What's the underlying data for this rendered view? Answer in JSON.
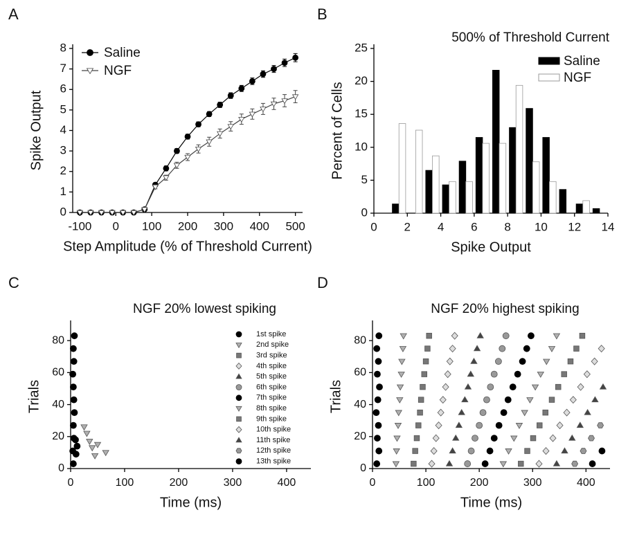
{
  "chart_data": [
    {
      "panel": "A",
      "type": "line",
      "xlabel": "Step Amplitude (% of Threshold Current)",
      "ylabel": "Spike Output",
      "x": [
        -100,
        -70,
        -40,
        -10,
        20,
        50,
        80,
        110,
        140,
        170,
        200,
        230,
        260,
        290,
        320,
        350,
        380,
        410,
        440,
        470,
        500
      ],
      "xlim": [
        -120,
        520
      ],
      "xticks": [
        -100,
        0,
        100,
        200,
        300,
        400,
        500
      ],
      "ylim": [
        0,
        8
      ],
      "yticks": [
        0,
        1,
        2,
        3,
        4,
        5,
        6,
        7,
        8
      ],
      "legend": "upper left",
      "series": [
        {
          "name": "Saline",
          "color": "#000000",
          "fill": "#000000",
          "marker": "circle",
          "values": [
            0,
            0,
            0,
            0,
            0,
            0,
            0.15,
            1.35,
            2.15,
            3.0,
            3.7,
            4.3,
            4.8,
            5.25,
            5.7,
            6.05,
            6.4,
            6.75,
            7.0,
            7.3,
            7.55
          ],
          "errors": [
            0.02,
            0.02,
            0.02,
            0.02,
            0.02,
            0.02,
            0.05,
            0.1,
            0.12,
            0.12,
            0.12,
            0.12,
            0.12,
            0.13,
            0.14,
            0.15,
            0.16,
            0.16,
            0.17,
            0.18,
            0.2
          ]
        },
        {
          "name": "NGF",
          "color": "#444444",
          "fill": "#ffffff",
          "marker": "triangle-down",
          "values": [
            0,
            0,
            0,
            0,
            0,
            0,
            0.15,
            1.25,
            1.7,
            2.3,
            2.7,
            3.1,
            3.45,
            3.85,
            4.2,
            4.55,
            4.8,
            5.05,
            5.3,
            5.45,
            5.65
          ],
          "errors": [
            0.02,
            0.02,
            0.02,
            0.02,
            0.02,
            0.02,
            0.05,
            0.1,
            0.12,
            0.15,
            0.17,
            0.2,
            0.22,
            0.22,
            0.23,
            0.25,
            0.25,
            0.27,
            0.28,
            0.3,
            0.3
          ]
        }
      ]
    },
    {
      "panel": "B",
      "type": "bar",
      "title": "500% of Threshold Current",
      "xlabel": "Spike Output",
      "ylabel": "Percent of Cells",
      "x": [
        1,
        2,
        3,
        4,
        5,
        6,
        7,
        8,
        9,
        10,
        11,
        12,
        13
      ],
      "xlim": [
        0,
        14
      ],
      "xticks": [
        0,
        2,
        4,
        6,
        8,
        10,
        12,
        14
      ],
      "ylim": [
        0,
        25
      ],
      "yticks": [
        0,
        5,
        10,
        15,
        20,
        25
      ],
      "legend": "upper right",
      "series": [
        {
          "name": "Saline",
          "color": "#000000",
          "values": [
            1.4,
            0,
            6.5,
            4.3,
            7.9,
            11.5,
            21.7,
            13,
            15.9,
            11.5,
            3.6,
            1.4,
            0.7
          ]
        },
        {
          "name": "NGF",
          "color": "#ffffff",
          "values": [
            13.6,
            12.6,
            8.7,
            4.8,
            4.8,
            10.6,
            10.6,
            19.4,
            7.8,
            4.8,
            0,
            1.9,
            0
          ]
        }
      ]
    },
    {
      "panel": "C",
      "type": "scatter",
      "title": "NGF 20% lowest spiking",
      "xlabel": "Time (ms)",
      "ylabel": "Trials",
      "xlim": [
        0,
        445
      ],
      "xticks": [
        0,
        100,
        200,
        300,
        400
      ],
      "ylim": [
        0,
        90
      ],
      "yticks": [
        0,
        20,
        40,
        60,
        80
      ],
      "legend": "right",
      "series": [
        {
          "name": "1st spike",
          "marker": "circle",
          "color": "#000000",
          "x": [
            5,
            4,
            6,
            5,
            7,
            6,
            5,
            4,
            6,
            5,
            7,
            10,
            12,
            9
          ],
          "y": [
            3,
            11,
            19,
            27,
            35,
            43,
            51,
            59,
            67,
            75,
            83,
            9,
            14,
            18
          ]
        },
        {
          "name": "2nd spike",
          "marker": "triangle-down",
          "color": "#b0b0b0",
          "x": [
            45,
            65,
            40,
            35,
            30,
            25,
            50
          ],
          "y": [
            8,
            10,
            13,
            17,
            22,
            26,
            15
          ]
        },
        {
          "name": "3rd spike",
          "marker": "square",
          "color": "#777777",
          "x": [],
          "y": []
        },
        {
          "name": "4th spike",
          "marker": "diamond",
          "color": "#dddddd",
          "x": [],
          "y": []
        },
        {
          "name": "5th spike",
          "marker": "triangle-up",
          "color": "#444444",
          "x": [],
          "y": []
        },
        {
          "name": "6th spike",
          "marker": "circle",
          "color": "#999999",
          "x": [],
          "y": []
        },
        {
          "name": "7th spike",
          "marker": "circle",
          "color": "#000000",
          "x": [],
          "y": []
        },
        {
          "name": "8th spike",
          "marker": "triangle-down",
          "color": "#b0b0b0",
          "x": [],
          "y": []
        },
        {
          "name": "9th spike",
          "marker": "square",
          "color": "#777777",
          "x": [],
          "y": []
        },
        {
          "name": "10th spike",
          "marker": "diamond",
          "color": "#dddddd",
          "x": [],
          "y": []
        },
        {
          "name": "11th spike",
          "marker": "triangle-up",
          "color": "#444444",
          "x": [],
          "y": []
        },
        {
          "name": "12th spike",
          "marker": "hexagon",
          "color": "#999999",
          "x": [],
          "y": []
        },
        {
          "name": "13th spike",
          "marker": "circle",
          "color": "#000000",
          "x": [],
          "y": []
        }
      ]
    },
    {
      "panel": "D",
      "type": "scatter",
      "title": "NGF 20% highest spiking",
      "xlabel": "Time (ms)",
      "ylabel": "Trials",
      "xlim": [
        0,
        445
      ],
      "xticks": [
        0,
        100,
        200,
        300,
        400
      ],
      "ylim": [
        0,
        90
      ],
      "yticks": [
        0,
        20,
        40,
        60,
        80
      ],
      "series": [
        {
          "marker": "circle",
          "color": "#000000",
          "x": [
            8,
            12,
            9,
            11,
            7,
            10,
            13,
            9,
            11,
            8,
            12
          ],
          "y": [
            3,
            11,
            19,
            27,
            35,
            43,
            51,
            59,
            67,
            75,
            83
          ]
        },
        {
          "marker": "triangle-down",
          "color": "#b0b0b0",
          "x": [
            44,
            45,
            46,
            48,
            49,
            51,
            52,
            54,
            55,
            57,
            58
          ],
          "y": [
            3,
            11,
            19,
            27,
            35,
            43,
            51,
            59,
            67,
            75,
            83
          ]
        },
        {
          "marker": "square",
          "color": "#777777",
          "x": [
            77,
            80,
            83,
            86,
            89,
            91,
            94,
            97,
            100,
            103,
            106
          ],
          "y": [
            3,
            11,
            19,
            27,
            35,
            43,
            51,
            59,
            67,
            75,
            83
          ]
        },
        {
          "marker": "diamond",
          "color": "#dddddd",
          "x": [
            111,
            115,
            119,
            124,
            128,
            132,
            137,
            141,
            145,
            150,
            154
          ],
          "y": [
            3,
            11,
            19,
            27,
            35,
            43,
            51,
            59,
            67,
            75,
            83
          ]
        },
        {
          "marker": "triangle-up",
          "color": "#444444",
          "x": [
            144,
            150,
            156,
            162,
            167,
            173,
            179,
            184,
            190,
            196,
            202
          ],
          "y": [
            3,
            11,
            19,
            27,
            35,
            43,
            51,
            59,
            67,
            75,
            83
          ]
        },
        {
          "marker": "circle",
          "color": "#999999",
          "x": [
            178,
            185,
            192,
            200,
            207,
            214,
            221,
            228,
            236,
            243,
            250
          ],
          "y": [
            3,
            11,
            19,
            27,
            35,
            43,
            51,
            59,
            67,
            75,
            83
          ]
        },
        {
          "marker": "circle",
          "color": "#000000",
          "x": [
            211,
            220,
            228,
            237,
            246,
            254,
            263,
            272,
            281,
            289,
            297
          ],
          "y": [
            3,
            11,
            19,
            27,
            35,
            43,
            51,
            59,
            67,
            75,
            83
          ]
        },
        {
          "marker": "triangle-down",
          "color": "#b0b0b0",
          "x": [
            245,
            255,
            265,
            275,
            285,
            295,
            305,
            315,
            326,
            336,
            345
          ],
          "y": [
            3,
            11,
            19,
            27,
            35,
            43,
            51,
            59,
            67,
            75,
            83
          ]
        },
        {
          "marker": "square",
          "color": "#777777",
          "x": [
            278,
            290,
            301,
            313,
            324,
            336,
            348,
            359,
            371,
            382,
            393
          ],
          "y": [
            3,
            11,
            19,
            27,
            35,
            43,
            51,
            59,
            67,
            75,
            83
          ]
        },
        {
          "marker": "diamond",
          "color": "#dddddd",
          "x": [
            312,
            325,
            338,
            351,
            364,
            376,
            390,
            402,
            416,
            429
          ],
          "y": [
            3,
            11,
            19,
            27,
            35,
            43,
            51,
            59,
            67,
            75
          ]
        },
        {
          "marker": "triangle-up",
          "color": "#444444",
          "x": [
            345,
            360,
            374,
            389,
            403,
            417,
            432
          ],
          "y": [
            3,
            11,
            19,
            27,
            35,
            43,
            51
          ]
        },
        {
          "marker": "hexagon",
          "color": "#999999",
          "x": [
            379,
            395,
            410,
            427
          ],
          "y": [
            3,
            11,
            19,
            27
          ]
        },
        {
          "marker": "circle",
          "color": "#000000",
          "x": [
            412,
            430
          ],
          "y": [
            3,
            11
          ]
        }
      ]
    }
  ]
}
